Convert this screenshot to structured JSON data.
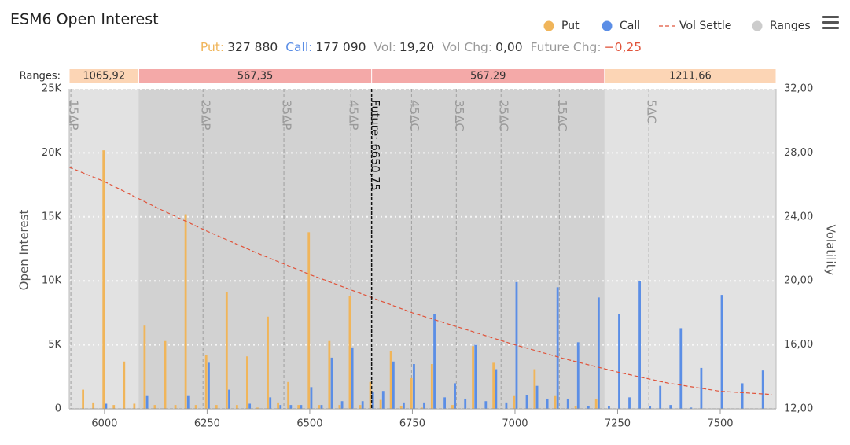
{
  "chart_data": {
    "type": "bar",
    "title": "ESM6 Open Interest",
    "y_label": "Open Interest",
    "y2_label": "Volatility",
    "x": [
      5950,
      5975,
      6000,
      6025,
      6050,
      6075,
      6100,
      6125,
      6150,
      6175,
      6200,
      6225,
      6250,
      6275,
      6300,
      6325,
      6350,
      6375,
      6400,
      6425,
      6450,
      6475,
      6500,
      6525,
      6550,
      6575,
      6600,
      6625,
      6650,
      6675,
      6700,
      6725,
      6750,
      6775,
      6800,
      6825,
      6850,
      6875,
      6900,
      6925,
      6950,
      6975,
      7000,
      7025,
      7050,
      7075,
      7100,
      7125,
      7150,
      7175,
      7200,
      7225,
      7250,
      7275,
      7300,
      7325,
      7350,
      7375,
      7400,
      7425,
      7450,
      7475,
      7500,
      7525,
      7550,
      7575,
      7600
    ],
    "series": [
      {
        "name": "Put",
        "color": "#f0b55a",
        "values": [
          1500,
          500,
          20200,
          300,
          3700,
          400,
          6500,
          300,
          5300,
          300,
          15200,
          300,
          4200,
          300,
          9100,
          300,
          4100,
          100,
          7200,
          500,
          2100,
          300,
          13800,
          300,
          5300,
          300,
          8800,
          300,
          2100,
          700,
          4500,
          200,
          2400,
          100,
          3500,
          null,
          300,
          null,
          4900,
          null,
          3600,
          null,
          1000,
          null,
          3100,
          null,
          1000,
          null,
          200,
          null,
          800,
          null,
          null,
          null,
          null,
          null,
          null,
          null,
          null,
          null,
          null,
          null,
          null,
          null,
          null,
          null,
          null
        ]
      },
      {
        "name": "Call",
        "color": "#5b8ee6",
        "values": [
          null,
          null,
          400,
          null,
          null,
          null,
          1000,
          null,
          null,
          null,
          1000,
          null,
          3600,
          null,
          1500,
          null,
          400,
          null,
          900,
          300,
          300,
          300,
          1700,
          300,
          4000,
          600,
          4800,
          600,
          1300,
          1400,
          3700,
          500,
          3500,
          500,
          7400,
          900,
          2000,
          800,
          5000,
          600,
          3100,
          500,
          9900,
          1100,
          1800,
          800,
          9500,
          800,
          5200,
          200,
          8700,
          200,
          7400,
          900,
          10000,
          200,
          1800,
          300,
          6300,
          100,
          3200,
          null,
          8900,
          null,
          2000,
          null,
          3000
        ]
      },
      {
        "name": "Vol Settle",
        "color": "#e0533a",
        "axis": "y2",
        "x": [
          5914,
          6000,
          6125,
          6250,
          6375,
          6500,
          6625,
          6750,
          6875,
          7000,
          7125,
          7250,
          7375,
          7500,
          7625
        ],
        "values": [
          27.1,
          26.2,
          24.6,
          23.1,
          21.7,
          20.4,
          19.2,
          18.0,
          17.0,
          16.0,
          15.1,
          14.3,
          13.6,
          13.1,
          12.9
        ]
      }
    ],
    "ranges_name": "Ranges",
    "ranges_label": "Ranges:",
    "ranges_color": "#cccccc",
    "ranges": [
      {
        "value": 1065.92,
        "label": "1065,92",
        "color": "#fcd5b5"
      },
      {
        "value": 567.35,
        "label": "567,35",
        "color": "#f4a9a8"
      },
      {
        "value": 567.29,
        "label": "567,29",
        "color": "#f4a9a8"
      },
      {
        "value": 1211.66,
        "label": "1211,66",
        "color": "#fcd5b5"
      }
    ],
    "future": {
      "value": 6650.75,
      "label": "Future: 6650,75"
    },
    "deltas": [
      {
        "value": 5918,
        "label": "15ΔP"
      },
      {
        "value": 6240,
        "label": "25ΔP"
      },
      {
        "value": 6437,
        "label": "35ΔP"
      },
      {
        "value": 6600,
        "label": "45ΔP"
      },
      {
        "value": 6748,
        "label": "45ΔC"
      },
      {
        "value": 6857,
        "label": "35ΔC"
      },
      {
        "value": 6966,
        "label": "25ΔC"
      },
      {
        "value": 7108,
        "label": "15ΔC"
      },
      {
        "value": 7326,
        "label": "5ΔC"
      }
    ],
    "stats": [
      {
        "label": "Put:",
        "value": "327 880",
        "color": "#f0b55a"
      },
      {
        "label": "Call:",
        "value": "177 090",
        "color": "#5b8ee6"
      },
      {
        "label": "Vol:",
        "value": "19,20",
        "color": "#999999"
      },
      {
        "label": "Vol Chg:",
        "value": "0,00",
        "color": "#999999"
      },
      {
        "label": "Future Chg:",
        "value": "−0,25",
        "color": "#999999",
        "value_color": "#e0533a"
      }
    ],
    "xlim": [
      5914,
      7636
    ],
    "ylim": [
      0,
      25000
    ],
    "y2lim": [
      12,
      32
    ],
    "xticks": [
      6000,
      6250,
      6500,
      6750,
      7000,
      7250,
      7500
    ],
    "yticks": [
      0,
      {
        "value": 5000,
        "label": "5K"
      },
      {
        "value": 10000,
        "label": "10K"
      },
      {
        "value": 15000,
        "label": "15K"
      },
      {
        "value": 20000,
        "label": "20K"
      },
      {
        "value": 25000,
        "label": "25K"
      }
    ],
    "y2ticks": [
      {
        "value": 12,
        "label": "12,00"
      },
      {
        "value": 16,
        "label": "16,00"
      },
      {
        "value": 20,
        "label": "20,00"
      },
      {
        "value": 24,
        "label": "24,00"
      },
      {
        "value": 28,
        "label": "28,00"
      },
      {
        "value": 32,
        "label": "32,00"
      }
    ],
    "grid": true
  }
}
